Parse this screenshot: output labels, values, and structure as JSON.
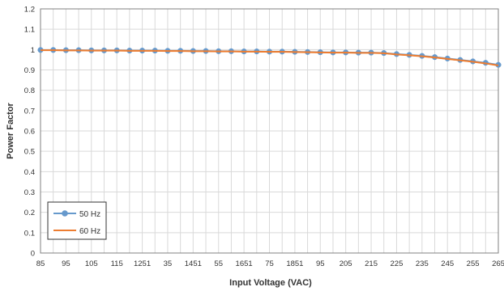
{
  "chart_data": {
    "type": "line",
    "xlabel": "Input Voltage (VAC)",
    "ylabel": "Power Factor",
    "x_tick_labels": [
      "85",
      "95",
      "105",
      "115",
      "1251",
      "35",
      "1451",
      "55",
      "1651",
      "75",
      "1851",
      "95",
      "205",
      "215",
      "225",
      "235",
      "245",
      "255",
      "265"
    ],
    "x": [
      85,
      90,
      95,
      100,
      105,
      110,
      115,
      120,
      125,
      130,
      135,
      140,
      145,
      150,
      155,
      160,
      165,
      170,
      175,
      180,
      185,
      190,
      195,
      200,
      205,
      210,
      215,
      220,
      225,
      230,
      235,
      240,
      245,
      250,
      255,
      260,
      265
    ],
    "xlim": [
      85,
      265
    ],
    "ylim": [
      0,
      1.2
    ],
    "y_ticks": [
      "0",
      "0.1",
      "0.2",
      "0.3",
      "0.4",
      "0.5",
      "0.6",
      "0.7",
      "0.8",
      "0.9",
      "1",
      "1.1",
      "1.2"
    ],
    "grid": true,
    "legend_position": "bottom-left",
    "series": [
      {
        "name": "50 Hz",
        "color": "#6699cc",
        "marker": "circle",
        "values": [
          0.998,
          0.998,
          0.997,
          0.997,
          0.996,
          0.996,
          0.996,
          0.995,
          0.995,
          0.995,
          0.994,
          0.994,
          0.993,
          0.993,
          0.992,
          0.992,
          0.991,
          0.991,
          0.99,
          0.99,
          0.989,
          0.988,
          0.987,
          0.986,
          0.986,
          0.985,
          0.985,
          0.983,
          0.978,
          0.974,
          0.969,
          0.963,
          0.956,
          0.949,
          0.942,
          0.935,
          0.925
        ]
      },
      {
        "name": "60 Hz",
        "color": "#ed7d31",
        "marker": "none",
        "values": [
          0.997,
          0.997,
          0.996,
          0.996,
          0.995,
          0.995,
          0.995,
          0.994,
          0.994,
          0.994,
          0.993,
          0.993,
          0.992,
          0.992,
          0.991,
          0.991,
          0.99,
          0.99,
          0.989,
          0.989,
          0.988,
          0.987,
          0.986,
          0.985,
          0.985,
          0.984,
          0.984,
          0.982,
          0.976,
          0.972,
          0.967,
          0.961,
          0.954,
          0.947,
          0.94,
          0.932,
          0.922
        ]
      }
    ]
  }
}
